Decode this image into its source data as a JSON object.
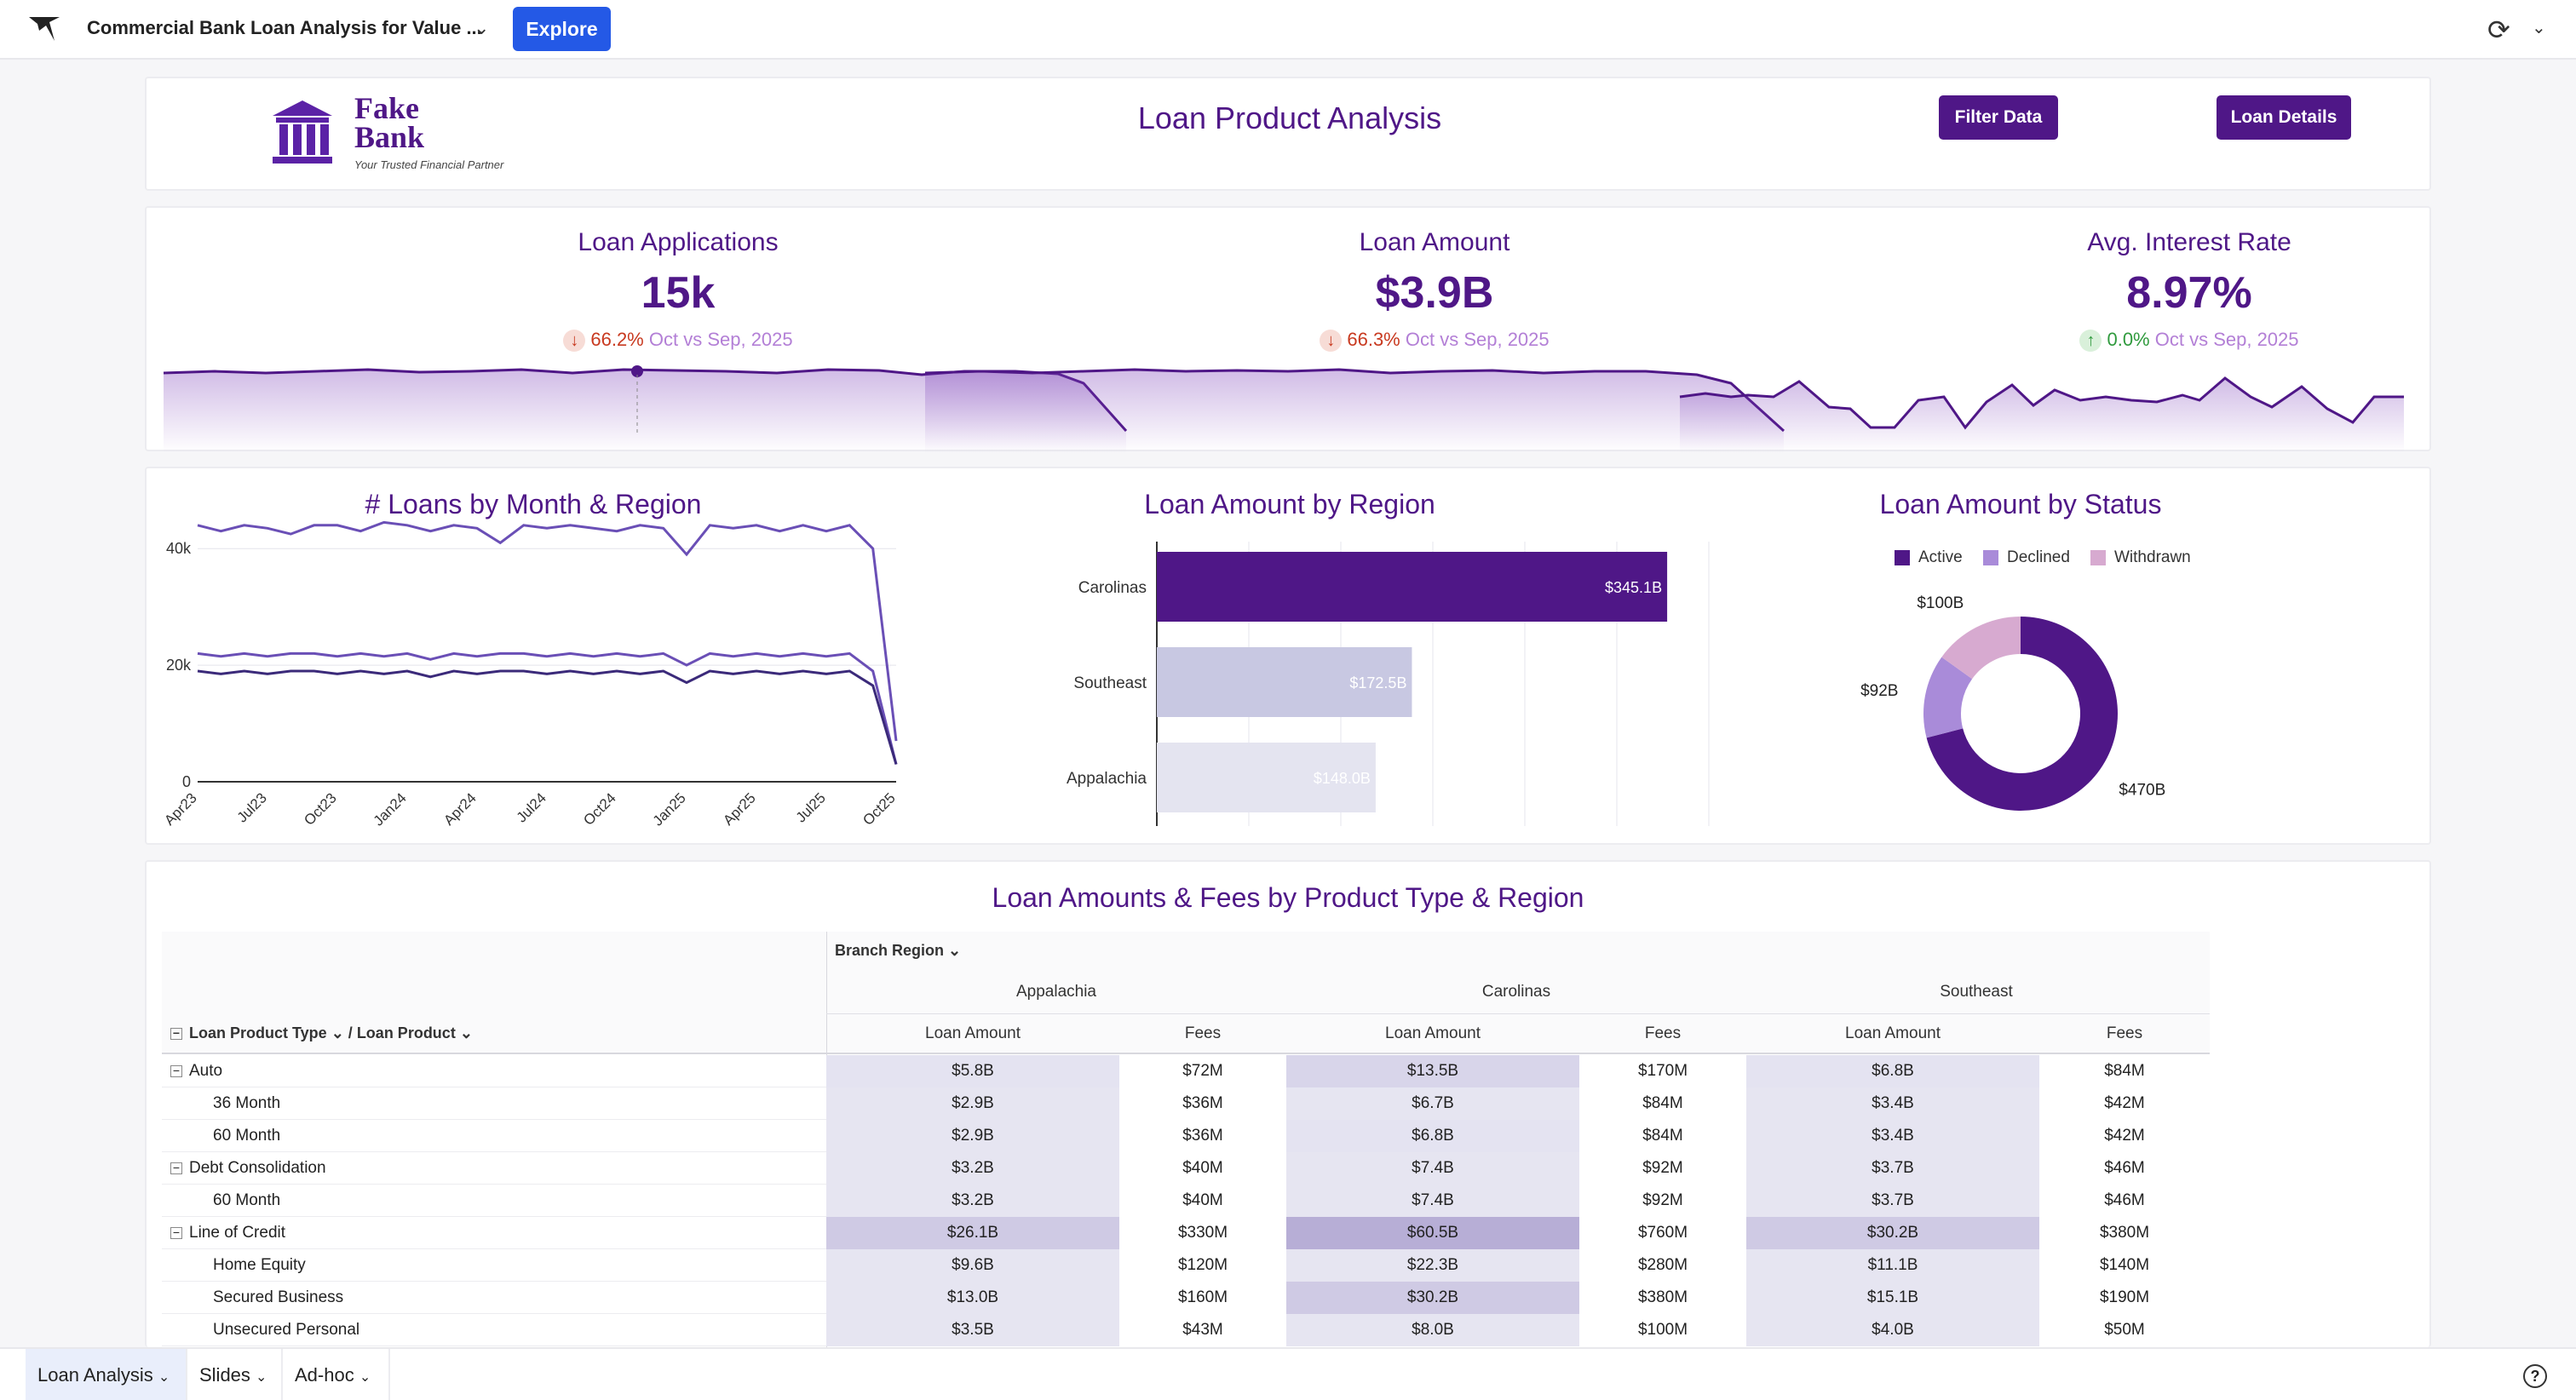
{
  "header": {
    "title": "Commercial Bank Loan Analysis for Value ...",
    "explore_label": "Explore",
    "refresh_icon": "refresh-icon"
  },
  "brand": {
    "name_line1": "Fake",
    "name_line2": "Bank",
    "tagline": "Your Trusted Financial Partner",
    "page_title": "Loan Product Analysis",
    "filter_btn": "Filter Data",
    "details_btn": "Loan Details"
  },
  "kpis": [
    {
      "title": "Loan Applications",
      "value": "15k",
      "change": "66.2%",
      "direction": "down",
      "period": "Oct vs Sep, 2025"
    },
    {
      "title": "Loan Amount",
      "value": "$3.9B",
      "change": "66.3%",
      "direction": "down",
      "period": "Oct vs Sep, 2025"
    },
    {
      "title": "Avg. Interest Rate",
      "value": "8.97%",
      "change": "0.0%",
      "direction": "up",
      "period": "Oct vs Sep, 2025"
    }
  ],
  "chart_data": [
    {
      "type": "line",
      "title": "# Loans by Month & Region",
      "x": [
        "Apr23",
        "May23",
        "Jun23",
        "Jul23",
        "Aug23",
        "Sep23",
        "Oct23",
        "Nov23",
        "Dec23",
        "Jan24",
        "Feb24",
        "Mar24",
        "Apr24",
        "May24",
        "Jun24",
        "Jul24",
        "Aug24",
        "Sep24",
        "Oct24",
        "Nov24",
        "Dec24",
        "Jan25",
        "Feb25",
        "Mar25",
        "Apr25",
        "May25",
        "Jun25",
        "Jul25",
        "Aug25",
        "Sep25",
        "Oct25"
      ],
      "xticks": [
        "Apr23",
        "Jul23",
        "Oct23",
        "Jan24",
        "Apr24",
        "Jul24",
        "Oct24",
        "Jan25",
        "Apr25",
        "Jul25",
        "Oct25"
      ],
      "yticks": [
        "0",
        "20k",
        "40k"
      ],
      "ylim": [
        0,
        45000
      ],
      "series": [
        {
          "values": [
            44000,
            43000,
            44000,
            43500,
            42500,
            44000,
            44000,
            43000,
            44500,
            44000,
            43000,
            44000,
            43500,
            41000,
            44000,
            43500,
            44000,
            43500,
            43000,
            44000,
            43500,
            39000,
            44000,
            43500,
            44000,
            43000,
            44000,
            43000,
            44000,
            40000,
            7000
          ]
        },
        {
          "values": [
            22000,
            21500,
            22000,
            21500,
            22000,
            22000,
            21500,
            22000,
            21500,
            22000,
            21000,
            22000,
            21500,
            22000,
            22000,
            21500,
            22000,
            21500,
            22000,
            21500,
            22000,
            20000,
            22000,
            21500,
            22000,
            21500,
            22000,
            21500,
            22000,
            19000,
            3000
          ]
        },
        {
          "values": [
            19000,
            18500,
            19000,
            18500,
            19000,
            19000,
            18500,
            19000,
            18500,
            19000,
            18000,
            19000,
            18500,
            19000,
            19000,
            18500,
            19000,
            18500,
            19000,
            18500,
            19000,
            17000,
            19000,
            18500,
            19000,
            18500,
            19000,
            18500,
            19000,
            16500,
            3000
          ]
        }
      ]
    },
    {
      "type": "bar",
      "title": "Loan Amount by Region",
      "categories": [
        "Carolinas",
        "Southeast",
        "Appalachia"
      ],
      "values": [
        345.1,
        172.5,
        148.0
      ],
      "labels": [
        "$345.1B",
        "$172.5B",
        "$148.0B"
      ],
      "colors": [
        "#4f1787",
        "#c8c8e2",
        "#e4e4f0"
      ],
      "xlim": [
        0,
        500
      ]
    },
    {
      "type": "pie",
      "title": "Loan Amount by Status",
      "categories": [
        "Active",
        "Declined",
        "Withdrawn"
      ],
      "values": [
        470,
        92,
        100
      ],
      "labels": [
        "$470B",
        "$92B",
        "$100B"
      ],
      "colors": [
        "#4f1787",
        "#a98bd9",
        "#d7aad0"
      ]
    }
  ],
  "table": {
    "title": "Loan Amounts & Fees by Product Type & Region",
    "col_group": "Branch Region",
    "row_header_1": "Loan Product Type",
    "row_header_2": "Loan Product",
    "regions": [
      "Appalachia",
      "Carolinas",
      "Southeast"
    ],
    "measures": [
      "Loan Amount",
      "Fees"
    ],
    "rows": [
      {
        "label": "Auto",
        "level": 0,
        "cells": [
          "$5.8B",
          "$72M",
          "$13.5B",
          "$170M",
          "$6.8B",
          "$84M"
        ]
      },
      {
        "label": "36 Month",
        "level": 1,
        "cells": [
          "$2.9B",
          "$36M",
          "$6.7B",
          "$84M",
          "$3.4B",
          "$42M"
        ]
      },
      {
        "label": "60 Month",
        "level": 1,
        "cells": [
          "$2.9B",
          "$36M",
          "$6.8B",
          "$84M",
          "$3.4B",
          "$42M"
        ]
      },
      {
        "label": "Debt Consolidation",
        "level": 0,
        "cells": [
          "$3.2B",
          "$40M",
          "$7.4B",
          "$92M",
          "$3.7B",
          "$46M"
        ]
      },
      {
        "label": "60 Month",
        "level": 1,
        "cells": [
          "$3.2B",
          "$40M",
          "$7.4B",
          "$92M",
          "$3.7B",
          "$46M"
        ]
      },
      {
        "label": "Line of Credit",
        "level": 0,
        "cells": [
          "$26.1B",
          "$330M",
          "$60.5B",
          "$760M",
          "$30.2B",
          "$380M"
        ]
      },
      {
        "label": "Home Equity",
        "level": 1,
        "cells": [
          "$9.6B",
          "$120M",
          "$22.3B",
          "$280M",
          "$11.1B",
          "$140M"
        ]
      },
      {
        "label": "Secured Business",
        "level": 1,
        "cells": [
          "$13.0B",
          "$160M",
          "$30.2B",
          "$380M",
          "$15.1B",
          "$190M"
        ]
      },
      {
        "label": "Unsecured Personal",
        "level": 1,
        "cells": [
          "$3.5B",
          "$43M",
          "$8.0B",
          "$100M",
          "$4.0B",
          "$50M"
        ]
      }
    ]
  },
  "tabs": [
    {
      "label": "Loan Analysis",
      "active": true
    },
    {
      "label": "Slides",
      "active": false
    },
    {
      "label": "Ad-hoc",
      "active": false
    }
  ],
  "help_icon": "help-icon"
}
